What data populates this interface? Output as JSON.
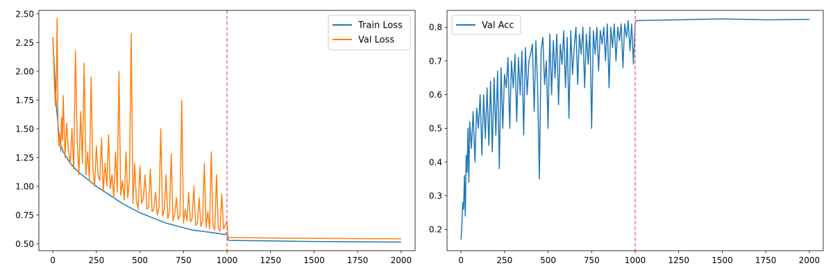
{
  "figure": {
    "colors": {
      "train": "#1f77b4",
      "val": "#ff7f0e",
      "acc": "#1f77b4",
      "vline": "#ff6b6b",
      "axis": "#000000"
    }
  },
  "chart_data": [
    {
      "type": "line",
      "title": "",
      "xlabel": "",
      "ylabel": "",
      "xlim": [
        -80,
        2080
      ],
      "ylim": [
        0.44,
        2.53
      ],
      "xticks": [
        0,
        250,
        500,
        750,
        1000,
        1250,
        1500,
        1750,
        2000
      ],
      "yticks": [
        0.5,
        0.75,
        1.0,
        1.25,
        1.5,
        1.75,
        2.0,
        2.25,
        2.5
      ],
      "ytick_labels": [
        "0.50",
        "0.75",
        "1.00",
        "1.25",
        "1.50",
        "1.75",
        "2.00",
        "2.25",
        "2.50"
      ],
      "grid": false,
      "legend": "top-right",
      "vline": {
        "x": 1000,
        "style": "dashed"
      },
      "series": [
        {
          "name": "Train Loss",
          "x": [
            0,
            10,
            20,
            40,
            60,
            80,
            100,
            150,
            200,
            250,
            300,
            350,
            400,
            450,
            500,
            550,
            600,
            650,
            700,
            750,
            800,
            850,
            900,
            950,
            990,
            1000,
            1005,
            1010,
            1250,
            1500,
            1750,
            2000
          ],
          "y": [
            2.29,
            2.0,
            1.7,
            1.38,
            1.3,
            1.25,
            1.2,
            1.12,
            1.06,
            1.0,
            0.95,
            0.9,
            0.85,
            0.81,
            0.77,
            0.74,
            0.71,
            0.68,
            0.66,
            0.64,
            0.62,
            0.61,
            0.6,
            0.59,
            0.58,
            0.6,
            0.54,
            0.53,
            0.525,
            0.52,
            0.517,
            0.515
          ]
        },
        {
          "name": "Val Loss",
          "x": [
            0,
            5,
            10,
            15,
            20,
            25,
            30,
            35,
            40,
            45,
            50,
            55,
            60,
            70,
            80,
            90,
            100,
            110,
            120,
            130,
            140,
            150,
            160,
            170,
            180,
            190,
            200,
            210,
            220,
            230,
            240,
            250,
            260,
            270,
            280,
            290,
            300,
            310,
            320,
            330,
            340,
            350,
            360,
            370,
            380,
            390,
            400,
            410,
            420,
            430,
            440,
            450,
            460,
            470,
            480,
            490,
            500,
            510,
            520,
            530,
            540,
            550,
            560,
            570,
            580,
            590,
            600,
            610,
            620,
            630,
            640,
            650,
            660,
            670,
            680,
            690,
            700,
            710,
            720,
            730,
            740,
            750,
            760,
            770,
            780,
            790,
            800,
            810,
            820,
            830,
            840,
            850,
            860,
            870,
            880,
            890,
            900,
            910,
            920,
            930,
            940,
            950,
            960,
            970,
            980,
            990,
            1000,
            1005,
            1010,
            1250,
            1500,
            1750,
            2000
          ],
          "y": [
            2.3,
            2.1,
            1.85,
            1.7,
            1.9,
            2.46,
            1.5,
            1.35,
            1.45,
            1.3,
            1.6,
            1.4,
            1.79,
            1.25,
            1.55,
            1.3,
            1.2,
            1.5,
            1.15,
            2.18,
            1.4,
            1.1,
            1.65,
            1.2,
            2.07,
            1.1,
            1.3,
            1.05,
            1.95,
            1.15,
            1.0,
            1.35,
            1.1,
            1.05,
            1.42,
            0.95,
            1.2,
            1.0,
            1.45,
            0.98,
            1.1,
            0.9,
            1.3,
            0.95,
            2.0,
            0.92,
            1.05,
            0.88,
            1.3,
            0.9,
            1.05,
            2.33,
            0.85,
            1.2,
            0.88,
            0.8,
            1.18,
            0.85,
            0.9,
            1.1,
            0.8,
            0.82,
            1.15,
            0.78,
            0.8,
            0.95,
            0.75,
            0.82,
            1.5,
            0.74,
            0.8,
            1.1,
            0.72,
            0.78,
            1.28,
            0.7,
            0.76,
            0.9,
            0.71,
            0.75,
            1.75,
            0.68,
            0.8,
            0.7,
            0.95,
            0.69,
            0.72,
            1.0,
            0.66,
            0.68,
            0.9,
            0.65,
            0.7,
            1.2,
            0.64,
            0.78,
            0.63,
            1.3,
            0.66,
            0.62,
            1.1,
            0.64,
            0.61,
            0.93,
            0.63,
            0.66,
            0.7,
            0.56,
            0.555,
            0.55,
            0.547,
            0.545,
            0.543
          ]
        }
      ]
    },
    {
      "type": "line",
      "title": "",
      "xlabel": "",
      "ylabel": "",
      "xlim": [
        -80,
        2080
      ],
      "ylim": [
        0.137,
        0.85
      ],
      "xticks": [
        0,
        250,
        500,
        750,
        1000,
        1250,
        1500,
        1750,
        2000
      ],
      "yticks": [
        0.2,
        0.3,
        0.4,
        0.5,
        0.6,
        0.7,
        0.8
      ],
      "ytick_labels": [
        "0.2",
        "0.3",
        "0.4",
        "0.5",
        "0.6",
        "0.7",
        "0.8"
      ],
      "grid": false,
      "legend": "top-left",
      "vline": {
        "x": 1000,
        "style": "dashed"
      },
      "series": [
        {
          "name": "Val Acc",
          "x": [
            0,
            5,
            10,
            15,
            20,
            25,
            30,
            35,
            40,
            45,
            50,
            60,
            70,
            80,
            90,
            100,
            110,
            120,
            130,
            140,
            150,
            160,
            170,
            180,
            190,
            200,
            210,
            220,
            230,
            240,
            250,
            260,
            270,
            280,
            290,
            300,
            310,
            320,
            330,
            340,
            350,
            360,
            370,
            380,
            390,
            400,
            410,
            420,
            430,
            440,
            450,
            460,
            470,
            480,
            490,
            500,
            510,
            520,
            530,
            540,
            550,
            560,
            570,
            580,
            590,
            600,
            610,
            620,
            630,
            640,
            650,
            660,
            670,
            680,
            690,
            700,
            710,
            720,
            730,
            740,
            750,
            760,
            770,
            780,
            790,
            800,
            810,
            820,
            830,
            840,
            850,
            860,
            870,
            880,
            890,
            900,
            910,
            920,
            930,
            940,
            950,
            960,
            970,
            980,
            990,
            1000,
            1005,
            1010,
            1250,
            1500,
            1750,
            2000
          ],
          "y": [
            0.17,
            0.21,
            0.28,
            0.26,
            0.36,
            0.24,
            0.42,
            0.37,
            0.5,
            0.34,
            0.52,
            0.44,
            0.55,
            0.4,
            0.56,
            0.5,
            0.6,
            0.42,
            0.6,
            0.47,
            0.62,
            0.45,
            0.64,
            0.43,
            0.65,
            0.48,
            0.67,
            0.38,
            0.68,
            0.5,
            0.66,
            0.62,
            0.71,
            0.5,
            0.7,
            0.62,
            0.72,
            0.52,
            0.71,
            0.6,
            0.73,
            0.48,
            0.74,
            0.6,
            0.7,
            0.72,
            0.75,
            0.55,
            0.76,
            0.62,
            0.35,
            0.73,
            0.77,
            0.63,
            0.7,
            0.5,
            0.78,
            0.6,
            0.76,
            0.65,
            0.78,
            0.57,
            0.75,
            0.69,
            0.79,
            0.62,
            0.77,
            0.53,
            0.79,
            0.66,
            0.74,
            0.8,
            0.63,
            0.78,
            0.72,
            0.8,
            0.62,
            0.78,
            0.69,
            0.8,
            0.5,
            0.79,
            0.72,
            0.8,
            0.67,
            0.79,
            0.75,
            0.8,
            0.7,
            0.81,
            0.62,
            0.8,
            0.74,
            0.81,
            0.7,
            0.8,
            0.76,
            0.81,
            0.68,
            0.81,
            0.77,
            0.82,
            0.73,
            0.81,
            0.69,
            0.81,
            0.82,
            0.82,
            0.822,
            0.825,
            0.822,
            0.823
          ]
        }
      ]
    }
  ]
}
